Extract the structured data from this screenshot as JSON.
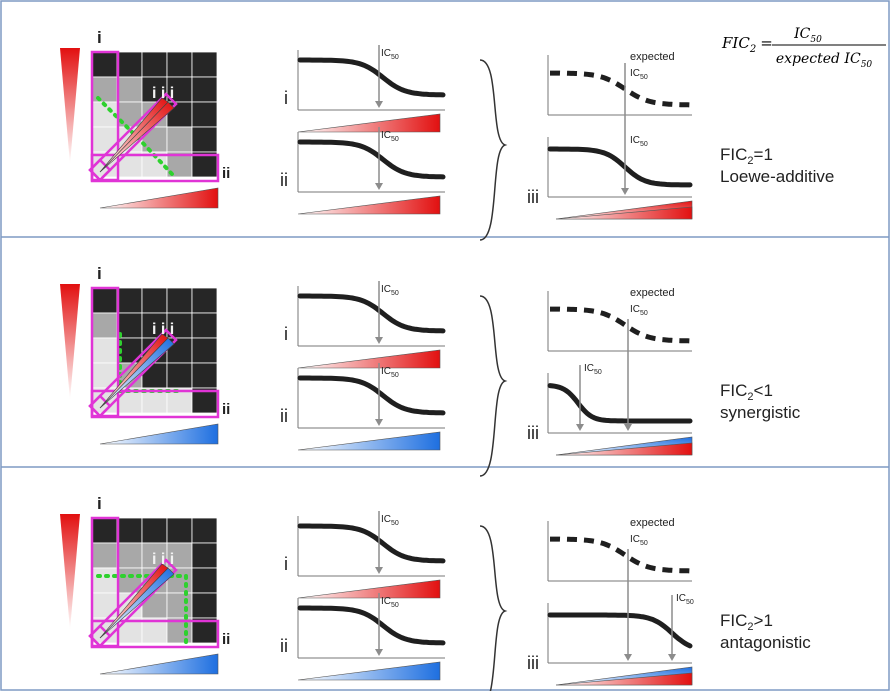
{
  "formula": {
    "lhs": "FIC",
    "lhs_sub": "2",
    "equals": "=",
    "numerator": "IC",
    "numerator_sub": "50",
    "denominator": "expected IC",
    "denominator_sub": "50"
  },
  "labels": {
    "i": "i",
    "ii": "ii",
    "iii": "iii",
    "iii_spaced": "i i i",
    "ic": "IC",
    "ic_sub": "50",
    "expected": "expected"
  },
  "panels": [
    {
      "id": "additive",
      "fic_prefix": "FIC",
      "fic_sub": "2",
      "fic_suffix": "=1",
      "interaction": "Loewe-additive",
      "drug2_color": "#e21010",
      "drug2_color_light": "#ffffff"
    },
    {
      "id": "synergistic",
      "fic_prefix": "FIC",
      "fic_sub": "2",
      "fic_suffix": "<1",
      "interaction": "synergistic",
      "drug2_color": "#1e6fe0",
      "drug2_color_light": "#ffffff"
    },
    {
      "id": "antagonistic",
      "fic_prefix": "FIC",
      "fic_sub": "2",
      "fic_suffix": ">1",
      "interaction": "antagonistic",
      "drug2_color": "#1e6fe0",
      "drug2_color_light": "#ffffff"
    }
  ],
  "colors": {
    "border": "#7f9ac4",
    "magenta": "#e034d6",
    "green_dots": "#2ed12e",
    "dark_cell": "#262626",
    "mid_cell": "#a8a8a8",
    "light_cell": "#e3e3e3",
    "curve": "#1f1f1f",
    "arrow": "#8c8c8c",
    "red": "#e21010"
  }
}
